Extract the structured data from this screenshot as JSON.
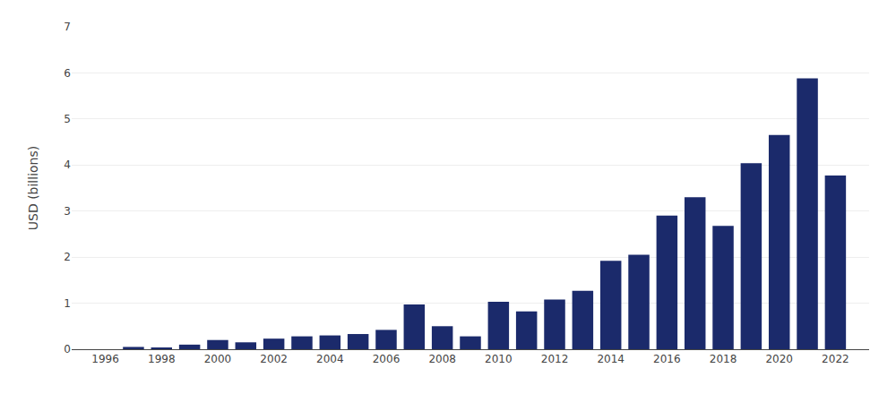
{
  "chart_data": {
    "type": "bar",
    "x": [
      1996,
      1997,
      1998,
      1999,
      2000,
      2001,
      2002,
      2003,
      2004,
      2005,
      2006,
      2007,
      2008,
      2009,
      2010,
      2011,
      2012,
      2013,
      2014,
      2015,
      2016,
      2017,
      2018,
      2019,
      2020,
      2021,
      2022
    ],
    "values": [
      0.0,
      0.05,
      0.02,
      0.1,
      0.2,
      0.15,
      0.23,
      0.28,
      0.3,
      0.33,
      0.42,
      0.97,
      0.5,
      0.28,
      1.03,
      0.82,
      1.08,
      1.27,
      1.92,
      2.05,
      2.9,
      3.3,
      2.68,
      4.04,
      4.65,
      5.88,
      3.77
    ],
    "color": "#1b2a6b",
    "ylabel": "USD (billions)",
    "xlim": [
      1994.8,
      2023.2
    ],
    "xticks": [
      1996,
      1998,
      2000,
      2002,
      2004,
      2006,
      2008,
      2010,
      2012,
      2014,
      2016,
      2018,
      2020,
      2022
    ],
    "ylim": [
      0,
      7
    ],
    "yticks": [
      0,
      1,
      2,
      3,
      4,
      5,
      6,
      7
    ],
    "grid": "y"
  }
}
